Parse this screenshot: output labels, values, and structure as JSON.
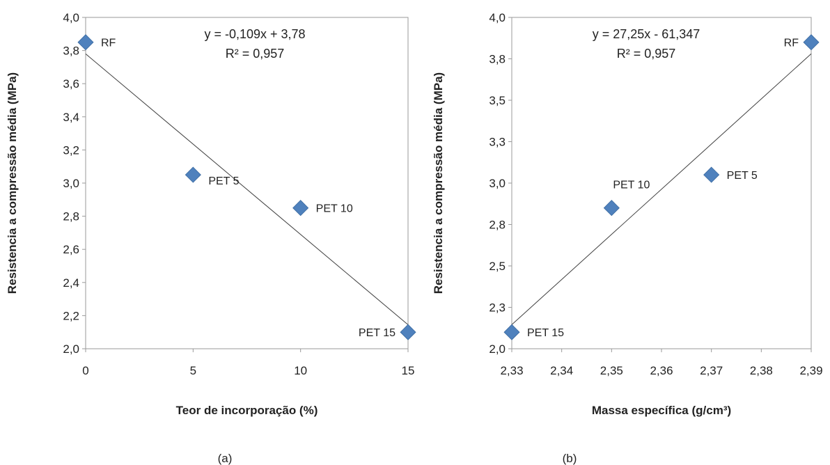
{
  "chart_data": [
    {
      "type": "scatter",
      "caption": "(a)",
      "xlabel": "Teor de incorporação (%)",
      "ylabel": "Resistencia a compressão média (MPa)",
      "xlim": [
        0,
        15
      ],
      "ylim": [
        2.0,
        4.0
      ],
      "xticks": [
        0,
        5,
        10,
        15
      ],
      "xtick_labels": [
        "0",
        "5",
        "10",
        "15"
      ],
      "yticks": [
        2.0,
        2.2,
        2.4,
        2.6,
        2.8,
        3.0,
        3.2,
        3.4,
        3.6,
        3.8,
        4.0
      ],
      "ytick_labels": [
        "2,0",
        "2,2",
        "2,4",
        "2,6",
        "2,8",
        "3,0",
        "3,2",
        "3,4",
        "3,6",
        "3,8",
        "4,0"
      ],
      "points": [
        {
          "x": 0,
          "y": 3.85,
          "label": "RF",
          "label_pos": "right"
        },
        {
          "x": 5,
          "y": 3.05,
          "label": "PET 5",
          "label_pos": "right-below"
        },
        {
          "x": 10,
          "y": 2.85,
          "label": "PET 10",
          "label_pos": "right"
        },
        {
          "x": 15,
          "y": 2.1,
          "label": "PET 15",
          "label_pos": "left"
        }
      ],
      "trendline": {
        "slope": -0.109,
        "intercept": 3.78
      },
      "equation": "y = -0,109x + 3,78",
      "r2": "R² = 0,957",
      "marker_color": "#4f81bd",
      "grid": false
    },
    {
      "type": "scatter",
      "caption": "(b)",
      "xlabel": "Massa específica (g/cm³)",
      "ylabel": "Resistencia a compressão média (MPa)",
      "xlim": [
        2.33,
        2.39
      ],
      "ylim": [
        2.0,
        4.0
      ],
      "xticks": [
        2.33,
        2.34,
        2.35,
        2.36,
        2.37,
        2.38,
        2.39
      ],
      "xtick_labels": [
        "2,33",
        "2,34",
        "2,35",
        "2,36",
        "2,37",
        "2,38",
        "2,39"
      ],
      "yticks": [
        2.0,
        2.25,
        2.5,
        2.75,
        3.0,
        3.25,
        3.5,
        3.75,
        4.0
      ],
      "ytick_labels": [
        "2,0",
        "2,3",
        "2,5",
        "2,8",
        "3,0",
        "3,3",
        "3,5",
        "3,8",
        "4,0"
      ],
      "points": [
        {
          "x": 2.39,
          "y": 3.85,
          "label": "RF",
          "label_pos": "left"
        },
        {
          "x": 2.37,
          "y": 3.05,
          "label": "PET 5",
          "label_pos": "right"
        },
        {
          "x": 2.35,
          "y": 2.85,
          "label": "PET 10",
          "label_pos": "above"
        },
        {
          "x": 2.33,
          "y": 2.1,
          "label": "PET 15",
          "label_pos": "right"
        }
      ],
      "trendline": {
        "slope": 27.25,
        "intercept": -61.347
      },
      "equation": "y = 27,25x - 61,347",
      "r2": "R² = 0,957",
      "marker_color": "#4f81bd",
      "grid": false
    }
  ]
}
